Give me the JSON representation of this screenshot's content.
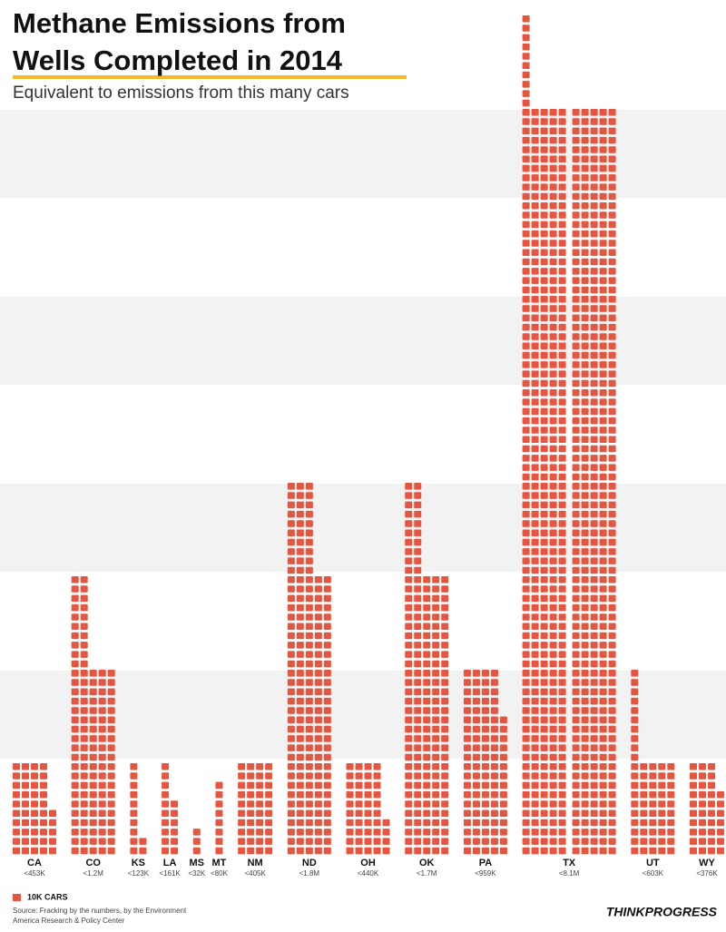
{
  "chart_data": {
    "type": "pictograph",
    "title": [
      "Methane Emissions from",
      "Wells Completed in 2014"
    ],
    "subtitle": "Equivalent to emissions from this many cars",
    "unit_value": 10000,
    "unit_label": "10K CARS",
    "color": "#e5553f",
    "categories": [
      "CA",
      "CO",
      "KS",
      "LA",
      "MS",
      "MT",
      "NM",
      "ND",
      "OH",
      "OK",
      "PA",
      "TX",
      "UT",
      "WY"
    ],
    "values": [
      453000,
      1200000,
      123000,
      161000,
      32000,
      80000,
      405000,
      1800000,
      440000,
      1700000,
      959000,
      8100000,
      603000,
      376000
    ],
    "value_labels": [
      "<453K",
      "<1.2M",
      "<123K",
      "<161K",
      "<32K",
      "<80K",
      "<405K",
      "<1.8M",
      "<440K",
      "<1.7M",
      "<959K",
      "<8.1M",
      "<603K",
      "<376K"
    ],
    "source": [
      "Source: Fracking by the numbers, by the Environment",
      "America Research & Policy Center"
    ],
    "brand": "THINKPROGRESS"
  }
}
